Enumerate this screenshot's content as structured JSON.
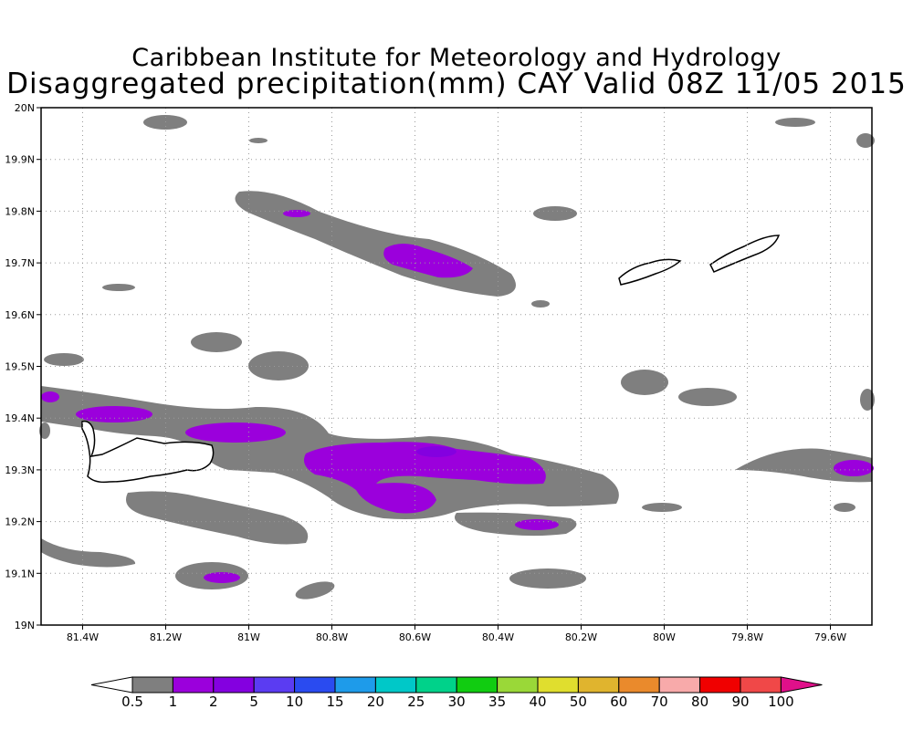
{
  "header": {
    "line1": "Caribbean Institute for Meteorology and Hydrology",
    "line2": "Disaggregated precipitation(mm) CAY Valid 08Z 11/05 2015"
  },
  "map": {
    "lon_range": [
      -81.5,
      -79.5
    ],
    "lat_range": [
      19.0,
      20.0
    ],
    "x_ticks": [
      {
        "value": -81.4,
        "label": "81.4W"
      },
      {
        "value": -81.2,
        "label": "81.2W"
      },
      {
        "value": -81.0,
        "label": "81W"
      },
      {
        "value": -80.8,
        "label": "80.8W"
      },
      {
        "value": -80.6,
        "label": "80.6W"
      },
      {
        "value": -80.4,
        "label": "80.4W"
      },
      {
        "value": -80.2,
        "label": "80.2W"
      },
      {
        "value": -80.0,
        "label": "80W"
      },
      {
        "value": -79.8,
        "label": "79.8W"
      },
      {
        "value": -79.6,
        "label": "79.6W"
      }
    ],
    "y_ticks": [
      {
        "value": 19.0,
        "label": "19N"
      },
      {
        "value": 19.1,
        "label": "19.1N"
      },
      {
        "value": 19.2,
        "label": "19.2N"
      },
      {
        "value": 19.3,
        "label": "19.3N"
      },
      {
        "value": 19.4,
        "label": "19.4N"
      },
      {
        "value": 19.5,
        "label": "19.5N"
      },
      {
        "value": 19.6,
        "label": "19.6N"
      },
      {
        "value": 19.7,
        "label": "19.7N"
      },
      {
        "value": 19.8,
        "label": "19.8N"
      },
      {
        "value": 19.9,
        "label": "19.9N"
      },
      {
        "value": 20.0,
        "label": "20N"
      }
    ],
    "grid": true,
    "colors": {
      "gray": "#7f7f7f",
      "purple": "#9b00dc",
      "violet": "#8400e0"
    }
  },
  "colorbar": {
    "under_color": "#ffffff",
    "over_color": "#e0108a",
    "colors": [
      "#7f7f7f",
      "#9b00dc",
      "#8400e0",
      "#5b3cf2",
      "#2a4bf0",
      "#1e9bea",
      "#00c8c8",
      "#00d28a",
      "#11cc11",
      "#9ad838",
      "#e0de2e",
      "#e0b42e",
      "#ea8a2c",
      "#f8aaaa",
      "#f00000",
      "#f04848"
    ],
    "labels": [
      "0.5",
      "1",
      "2",
      "5",
      "10",
      "15",
      "20",
      "25",
      "30",
      "35",
      "40",
      "50",
      "60",
      "70",
      "80",
      "90",
      "100"
    ]
  }
}
